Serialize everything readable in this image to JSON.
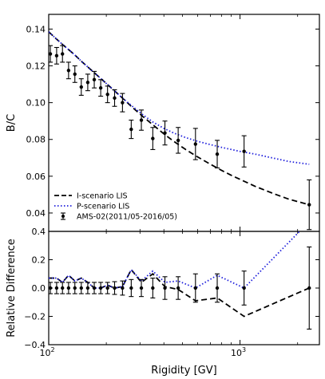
{
  "chart_data": [
    {
      "type": "line",
      "panel": "top",
      "title": "",
      "xlabel": "",
      "ylabel": "B/C",
      "x_scale": "log",
      "xlim": [
        100,
        2600
      ],
      "ylim": [
        0.03,
        0.148
      ],
      "y_ticks": [
        "0.04",
        "0.06",
        "0.08",
        "0.10",
        "0.12",
        "0.14"
      ],
      "legend_position": "lower-left",
      "series": [
        {
          "name": "I-scenario LIS",
          "style": "dashed",
          "color": "#000000",
          "x": [
            100,
            110,
            120,
            135,
            150,
            170,
            190,
            215,
            240,
            270,
            310,
            350,
            400,
            450,
            520,
            600,
            700,
            800,
            900,
            1000,
            1200,
            1500,
            1800,
            2300
          ],
          "y": [
            0.1385,
            0.1345,
            0.131,
            0.1265,
            0.122,
            0.117,
            0.1125,
            0.1075,
            0.103,
            0.098,
            0.0925,
            0.088,
            0.083,
            0.079,
            0.0745,
            0.0705,
            0.0665,
            0.0632,
            0.0605,
            0.0583,
            0.0545,
            0.0505,
            0.0475,
            0.0445
          ]
        },
        {
          "name": "P-scenario LIS",
          "style": "dotted",
          "color": "#1f1fdc",
          "x": [
            100,
            110,
            120,
            135,
            150,
            170,
            190,
            215,
            240,
            270,
            310,
            350,
            400,
            450,
            520,
            600,
            700,
            800,
            1000,
            1200,
            1500,
            1800,
            2300
          ],
          "y": [
            0.1385,
            0.1345,
            0.131,
            0.1265,
            0.122,
            0.117,
            0.1125,
            0.1075,
            0.103,
            0.0985,
            0.0935,
            0.0895,
            0.086,
            0.0835,
            0.081,
            0.079,
            0.0772,
            0.0757,
            0.0735,
            0.072,
            0.0698,
            0.068,
            0.0665
          ]
        },
        {
          "name": "AMS-02(2011/05-2016/05)",
          "style": "errorbar",
          "color": "#000000",
          "x": [
            102,
            110,
            118,
            127,
            137,
            148,
            160,
            173,
            187,
            203,
            221,
            243,
            270,
            305,
            350,
            405,
            475,
            585,
            760,
            1050,
            2300
          ],
          "y": [
            0.1265,
            0.1255,
            0.1265,
            0.1175,
            0.1155,
            0.1085,
            0.111,
            0.1125,
            0.108,
            0.1045,
            0.1025,
            0.1,
            0.0855,
            0.0905,
            0.0805,
            0.0835,
            0.0795,
            0.0775,
            0.072,
            0.0735,
            0.0445
          ],
          "yerr": [
            0.0045,
            0.0045,
            0.0045,
            0.0045,
            0.0045,
            0.0045,
            0.0045,
            0.0045,
            0.0045,
            0.0045,
            0.0045,
            0.005,
            0.005,
            0.0055,
            0.006,
            0.0065,
            0.007,
            0.0085,
            0.0075,
            0.0085,
            0.0135
          ]
        }
      ]
    },
    {
      "type": "line",
      "panel": "bottom",
      "title": "",
      "xlabel": "Rigidity [GV]",
      "ylabel": "Relative Difference",
      "x_scale": "log",
      "xlim": [
        100,
        2600
      ],
      "ylim": [
        -0.4,
        0.4
      ],
      "x_ticks": [
        {
          "value": 100,
          "base": "10",
          "exp": "2"
        },
        {
          "value": 1000,
          "base": "10",
          "exp": "3"
        }
      ],
      "y_ticks": [
        "−0.4",
        "−0.2",
        "0.0",
        "0.2",
        "0.4"
      ],
      "series": [
        {
          "name": "I-scenario LIS",
          "style": "dashed",
          "color": "#000000",
          "x": [
            100,
            110,
            118,
            127,
            137,
            148,
            160,
            173,
            187,
            203,
            221,
            243,
            270,
            305,
            350,
            405,
            475,
            585,
            760,
            1050,
            2300
          ],
          "y": [
            0.07,
            0.07,
            0.04,
            0.09,
            0.05,
            0.07,
            0.04,
            0.0,
            0.0,
            0.02,
            0.0,
            0.01,
            0.13,
            0.04,
            0.1,
            0.01,
            -0.01,
            -0.09,
            -0.07,
            -0.2,
            0.0
          ]
        },
        {
          "name": "P-scenario LIS",
          "style": "dotted",
          "color": "#1f1fdc",
          "x": [
            100,
            110,
            118,
            127,
            137,
            148,
            160,
            173,
            187,
            203,
            221,
            243,
            270,
            305,
            350,
            405,
            475,
            585,
            760,
            1050,
            2300
          ],
          "y": [
            0.07,
            0.07,
            0.04,
            0.09,
            0.05,
            0.07,
            0.04,
            0.0,
            0.0,
            0.02,
            0.0,
            0.01,
            0.13,
            0.05,
            0.12,
            0.04,
            0.05,
            0.0,
            0.09,
            0.0,
            0.47
          ]
        },
        {
          "name": "AMS-02(2011/05-2016/05)",
          "style": "errorbar",
          "color": "#000000",
          "x": [
            102,
            110,
            118,
            127,
            137,
            148,
            160,
            173,
            187,
            203,
            221,
            243,
            270,
            305,
            350,
            405,
            475,
            585,
            760,
            1050,
            2300
          ],
          "y": [
            0,
            0,
            0,
            0,
            0,
            0,
            0,
            0,
            0,
            0,
            0,
            0,
            0,
            0,
            0,
            0,
            0,
            0,
            0,
            0,
            0
          ],
          "yerr": [
            0.04,
            0.04,
            0.04,
            0.04,
            0.04,
            0.04,
            0.04,
            0.04,
            0.04,
            0.04,
            0.045,
            0.05,
            0.06,
            0.06,
            0.07,
            0.08,
            0.08,
            0.1,
            0.1,
            0.12,
            0.29
          ]
        }
      ]
    }
  ]
}
